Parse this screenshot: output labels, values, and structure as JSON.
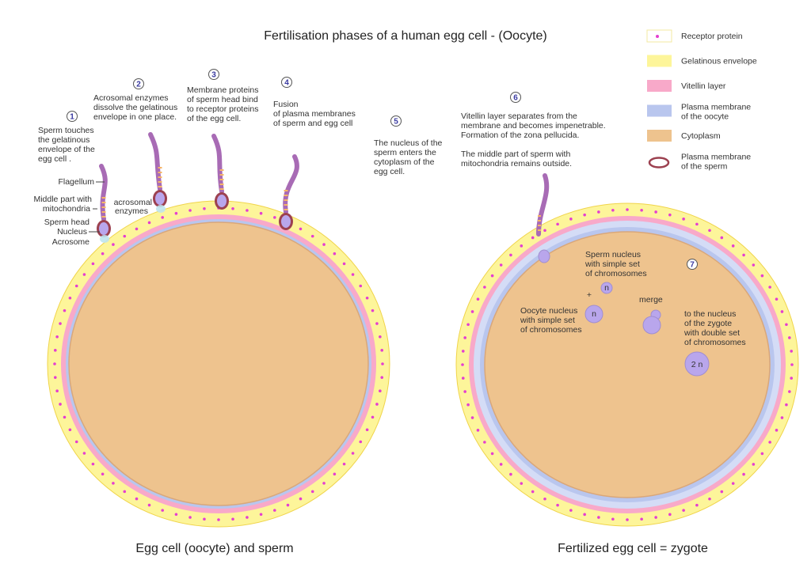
{
  "title": "Fertilisation phases of a human egg cell - (Oocyte)",
  "colors": {
    "gelatinous_envelope": "#fdf59a",
    "vitellin_layer": "#f8a9c9",
    "plasma_membrane_oocyte": "#b9c6ee",
    "cytoplasm": "#eec38e",
    "receptor_protein": "#e43fd0",
    "sperm_membrane": "#9c4150",
    "sperm_tail": "#a86bb5",
    "nucleus": "#b9a6ec",
    "step_number": "#3a3aa0"
  },
  "legend": [
    {
      "label": "Receptor protein",
      "swatch": "receptor-dot"
    },
    {
      "label": "Gelatinous envelope",
      "swatch": "gelatinous_envelope"
    },
    {
      "label": "Vitellin layer",
      "swatch": "vitellin_layer"
    },
    {
      "label_line1": "Plasma membrane",
      "label_line2": "of the oocyte",
      "swatch": "plasma_membrane_oocyte"
    },
    {
      "label": "Cytoplasm",
      "swatch": "cytoplasm"
    },
    {
      "label_line1": "Plasma membrane",
      "label_line2": "of the sperm",
      "swatch": "sperm_membrane"
    }
  ],
  "steps": [
    {
      "num": "1",
      "lines": [
        "Sperm touches",
        "the gelatinous",
        "envelope of the",
        "egg cell ."
      ]
    },
    {
      "num": "2",
      "lines": [
        "Acrosomal enzymes",
        "dissolve the gelatinous",
        "envelope in one place."
      ]
    },
    {
      "num": "3",
      "lines": [
        "Membrane proteins",
        "of sperm head bind",
        "to receptor proteins",
        "of the egg cell."
      ]
    },
    {
      "num": "4",
      "lines": [
        "Fusion",
        "of plasma membranes",
        "of sperm and egg cell"
      ]
    },
    {
      "num": "5",
      "lines": [
        "The nucleus of the",
        "sperm enters the",
        "cytoplasm of the",
        "egg cell."
      ]
    },
    {
      "num": "6",
      "lines": [
        "Vitellin layer separates from the",
        "membrane and becomes impenetrable.",
        "Formation of the zona pellucida.",
        "",
        "The middle part of sperm with",
        "mitochondria remains outside."
      ]
    },
    {
      "num": "7",
      "lines": []
    }
  ],
  "sperm_labels": {
    "flagellum": "Flagellum",
    "middle_part_1": "Middle part with",
    "middle_part_2": "mitochondria",
    "sperm_head": "Sperm head",
    "nucleus": "Nucleus",
    "acrosome": "Acrosome",
    "acrosomal_1": "acrosomal",
    "acrosomal_2": "enzymes"
  },
  "zygote_labels": {
    "sperm_nucleus": [
      "Sperm nucleus",
      "with simple set",
      "of chromosomes"
    ],
    "oocyte_nucleus": [
      "Oocyte nucleus",
      "with simple set",
      "of chromosomes"
    ],
    "plus": "+",
    "merge": "merge",
    "zygote_nucleus": [
      "to the nucleus",
      "of the zygote",
      "with double set",
      "of chromosomes"
    ],
    "n": "n",
    "two_n": "2 n"
  },
  "captions": {
    "left": "Egg cell (oocyte) and sperm",
    "right": "Fertilized egg cell = zygote"
  }
}
